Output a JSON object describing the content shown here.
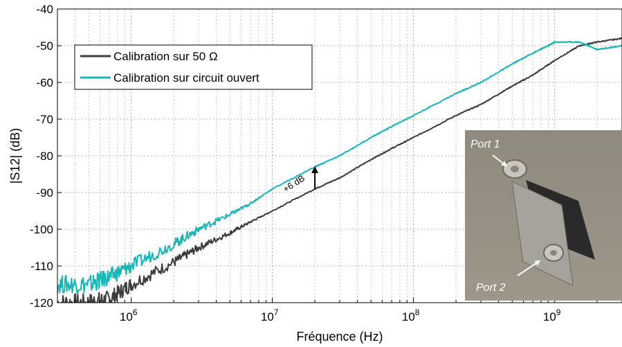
{
  "chart_data": {
    "type": "line",
    "xscale": "log",
    "xlabel": "Fréquence (Hz)",
    "ylabel": "|S12| (dB)",
    "xlim": [
      300000,
      3000000000
    ],
    "ylim": [
      -120,
      -40
    ],
    "grid": true,
    "legend_position": "top-left",
    "y_ticks": [
      "-40",
      "-50",
      "-60",
      "-70",
      "-80",
      "-90",
      "-100",
      "-110",
      "-120"
    ],
    "x_tick_labels": [
      {
        "base": "10",
        "exp": "6"
      },
      {
        "base": "10",
        "exp": "7"
      },
      {
        "base": "10",
        "exp": "8"
      },
      {
        "base": "10",
        "exp": "9"
      }
    ],
    "series": [
      {
        "name": "Calibration sur 50 Ω",
        "color": "#3c3c3c",
        "x": [
          300000,
          500000,
          700000,
          1000000,
          2000000,
          3000000,
          5000000,
          7000000,
          10000000,
          20000000,
          30000000,
          50000000,
          70000000,
          100000000,
          200000000,
          300000000,
          500000000,
          700000000,
          1000000000,
          1500000000,
          2000000000,
          3000000000
        ],
        "y": [
          -120,
          -120,
          -119,
          -115,
          -109,
          -105,
          -101,
          -98,
          -95,
          -89,
          -86,
          -81,
          -78,
          -75,
          -69,
          -66,
          -61,
          -58,
          -54,
          -50,
          -49,
          -48
        ]
      },
      {
        "name": "Calibration sur circuit ouvert",
        "color": "#19b6b6",
        "x": [
          300000,
          500000,
          700000,
          1000000,
          2000000,
          3000000,
          5000000,
          7000000,
          10000000,
          20000000,
          30000000,
          50000000,
          70000000,
          100000000,
          200000000,
          300000000,
          500000000,
          700000000,
          900000000,
          1000000000,
          1500000000,
          2000000000,
          3000000000
        ],
        "y": [
          -115,
          -115,
          -113,
          -110,
          -104,
          -100,
          -96,
          -93,
          -89,
          -83,
          -80,
          -75,
          -72,
          -69,
          -63,
          -60,
          -55,
          -52,
          -50,
          -49,
          -49,
          -51,
          -50
        ]
      }
    ],
    "annotation": {
      "text": "+6 dB",
      "x": 20000000,
      "from": -89,
      "to": -83
    },
    "inset": {
      "labels": [
        "Port 1",
        "Port 2"
      ]
    }
  }
}
